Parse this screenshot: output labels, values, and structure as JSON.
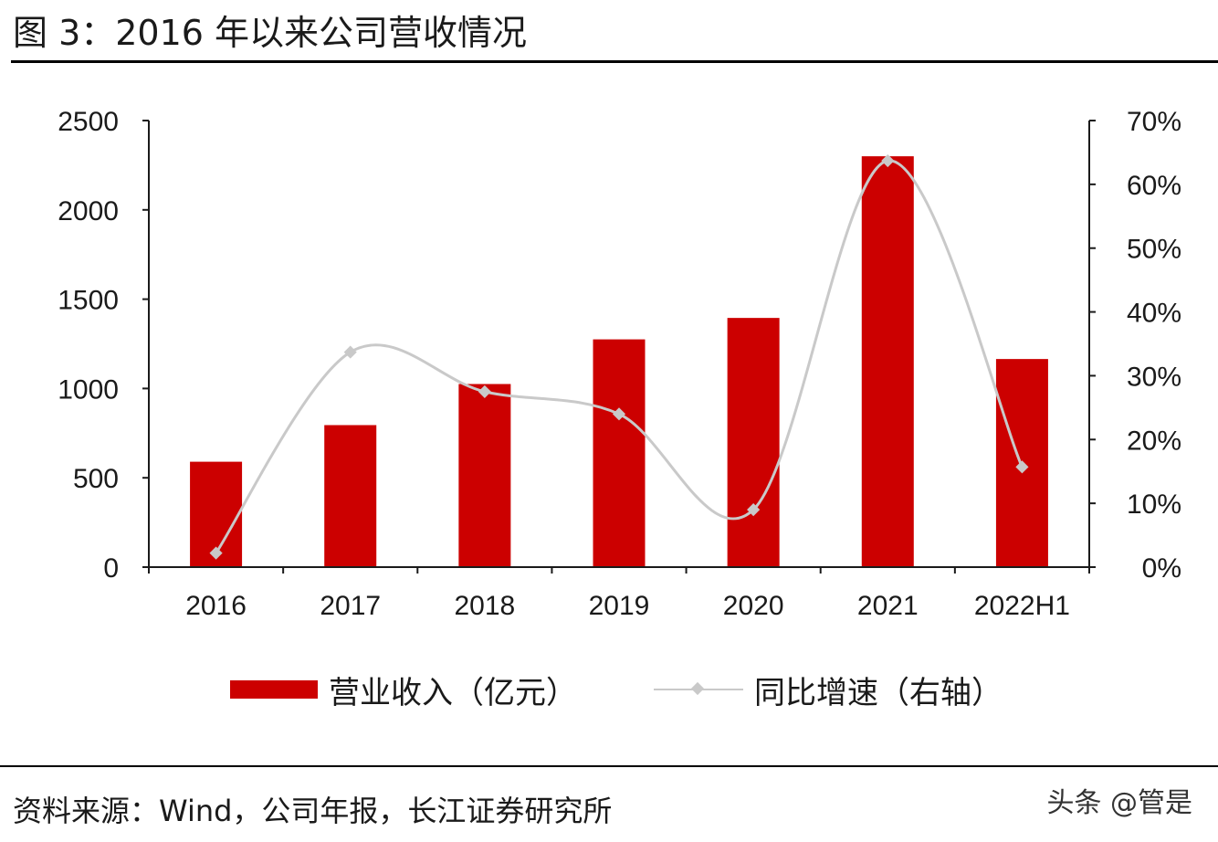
{
  "title": "图 3：2016 年以来公司营收情况",
  "source": "资料来源：Wind，公司年报，长江证券研究所",
  "watermark": "头条 @管是",
  "legend": {
    "bar_label": "营业收入（亿元）",
    "line_label": "同比增速（右轴）"
  },
  "colors": {
    "bar": "#cc0000",
    "line": "#c9c9c9",
    "axis": "#1a1a1a"
  },
  "chart_data": {
    "type": "bar",
    "categories": [
      "2016",
      "2017",
      "2018",
      "2019",
      "2020",
      "2021",
      "2022H1"
    ],
    "series": [
      {
        "name": "营业收入（亿元）",
        "type": "bar",
        "axis": "left",
        "values": [
          590,
          795,
          1025,
          1275,
          1395,
          2300,
          1165
        ]
      },
      {
        "name": "同比增速（右轴）",
        "type": "line",
        "axis": "right",
        "smooth": true,
        "values": [
          0.022,
          0.337,
          0.275,
          0.24,
          0.09,
          0.637,
          0.157
        ]
      }
    ],
    "ylim_left": [
      0,
      2500
    ],
    "yticks_left": [
      "0",
      "500",
      "1000",
      "1500",
      "2000",
      "2500"
    ],
    "ylim_right": [
      0,
      0.7
    ],
    "yticks_right": [
      "0%",
      "10%",
      "20%",
      "30%",
      "40%",
      "50%",
      "60%",
      "70%"
    ],
    "grid": false,
    "legend_position": "bottom"
  }
}
